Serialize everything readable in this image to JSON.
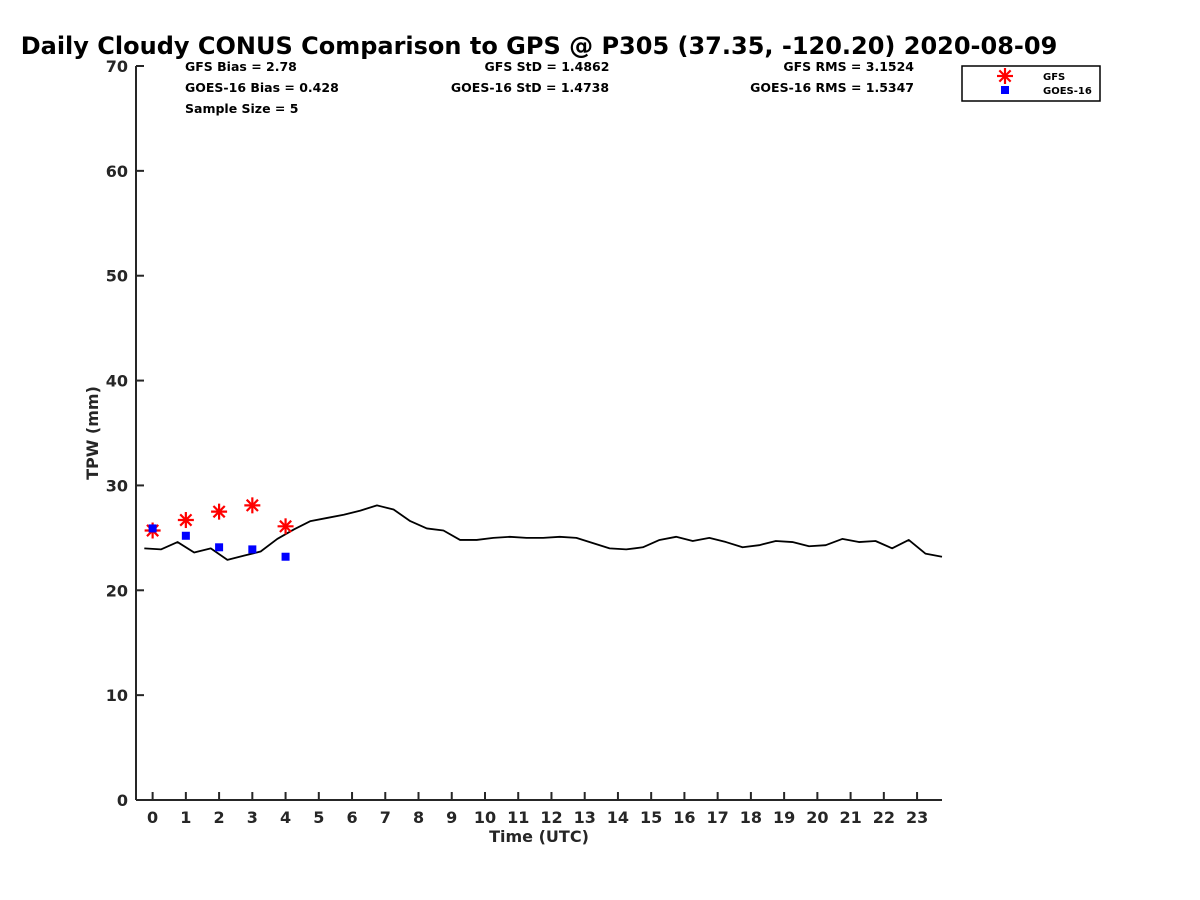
{
  "chart_data": {
    "type": "line",
    "title": "Daily Cloudy CONUS Comparison to GPS @ P305 (37.35, -120.20) 2020-08-09",
    "xlabel": "Time (UTC)",
    "ylabel": "TPW (mm)",
    "xlim": [
      -0.5,
      23.75
    ],
    "ylim": [
      0,
      70
    ],
    "xticks": [
      "0",
      "1",
      "2",
      "3",
      "4",
      "5",
      "6",
      "7",
      "8",
      "9",
      "10",
      "11",
      "12",
      "13",
      "14",
      "15",
      "16",
      "17",
      "18",
      "19",
      "20",
      "21",
      "22",
      "23"
    ],
    "yticks": [
      "0",
      "10",
      "20",
      "30",
      "40",
      "50",
      "60",
      "70"
    ],
    "grid": false,
    "legend_position": "top-right",
    "stats": {
      "gfs_bias": "GFS Bias = 2.78",
      "goes_bias": "GOES-16 Bias = 0.428",
      "sample_size": "Sample Size = 5",
      "gfs_std": "GFS StD = 1.4862",
      "goes_std": "GOES-16 StD = 1.4738",
      "gfs_rms": "GFS RMS = 3.1524",
      "goes_rms": "GOES-16 RMS = 1.5347"
    },
    "series": [
      {
        "kind": "line",
        "color": "#000000",
        "x": [
          -0.25,
          0.25,
          0.75,
          1.25,
          1.75,
          2.25,
          2.75,
          3.25,
          3.75,
          4.25,
          4.75,
          5.25,
          5.75,
          6.25,
          6.75,
          7.25,
          7.75,
          8.25,
          8.75,
          9.25,
          9.75,
          10.25,
          10.75,
          11.25,
          11.75,
          12.25,
          12.75,
          13.25,
          13.75,
          14.25,
          14.75,
          15.25,
          15.75,
          16.25,
          16.75,
          17.25,
          17.75,
          18.25,
          18.75,
          19.25,
          19.75,
          20.25,
          20.75,
          21.25,
          21.75,
          22.25,
          22.75,
          23.25,
          23.75
        ],
        "y": [
          24.0,
          23.9,
          24.6,
          23.6,
          24.0,
          22.9,
          23.3,
          23.7,
          24.9,
          25.8,
          26.6,
          26.9,
          27.2,
          27.6,
          28.1,
          27.7,
          26.6,
          25.9,
          25.7,
          24.8,
          24.8,
          25.0,
          25.1,
          25.0,
          25.0,
          25.1,
          25.0,
          24.5,
          24.0,
          23.9,
          24.1,
          24.8,
          25.1,
          24.7,
          25.0,
          24.6,
          24.1,
          24.3,
          24.7,
          24.6,
          24.2,
          24.3,
          24.9,
          24.6,
          24.7,
          24.0,
          24.8,
          23.5,
          23.2
        ]
      },
      {
        "name": "GFS",
        "kind": "scatter",
        "marker": "asterisk",
        "color": "#ff0000",
        "x": [
          0,
          1,
          2,
          3,
          4
        ],
        "y": [
          25.7,
          26.7,
          27.5,
          28.1,
          26.1
        ]
      },
      {
        "name": "GOES-16",
        "kind": "scatter",
        "marker": "square",
        "color": "#0000ff",
        "x": [
          0,
          1,
          2,
          3,
          4
        ],
        "y": [
          25.9,
          25.2,
          24.1,
          23.9,
          23.2
        ]
      }
    ]
  }
}
